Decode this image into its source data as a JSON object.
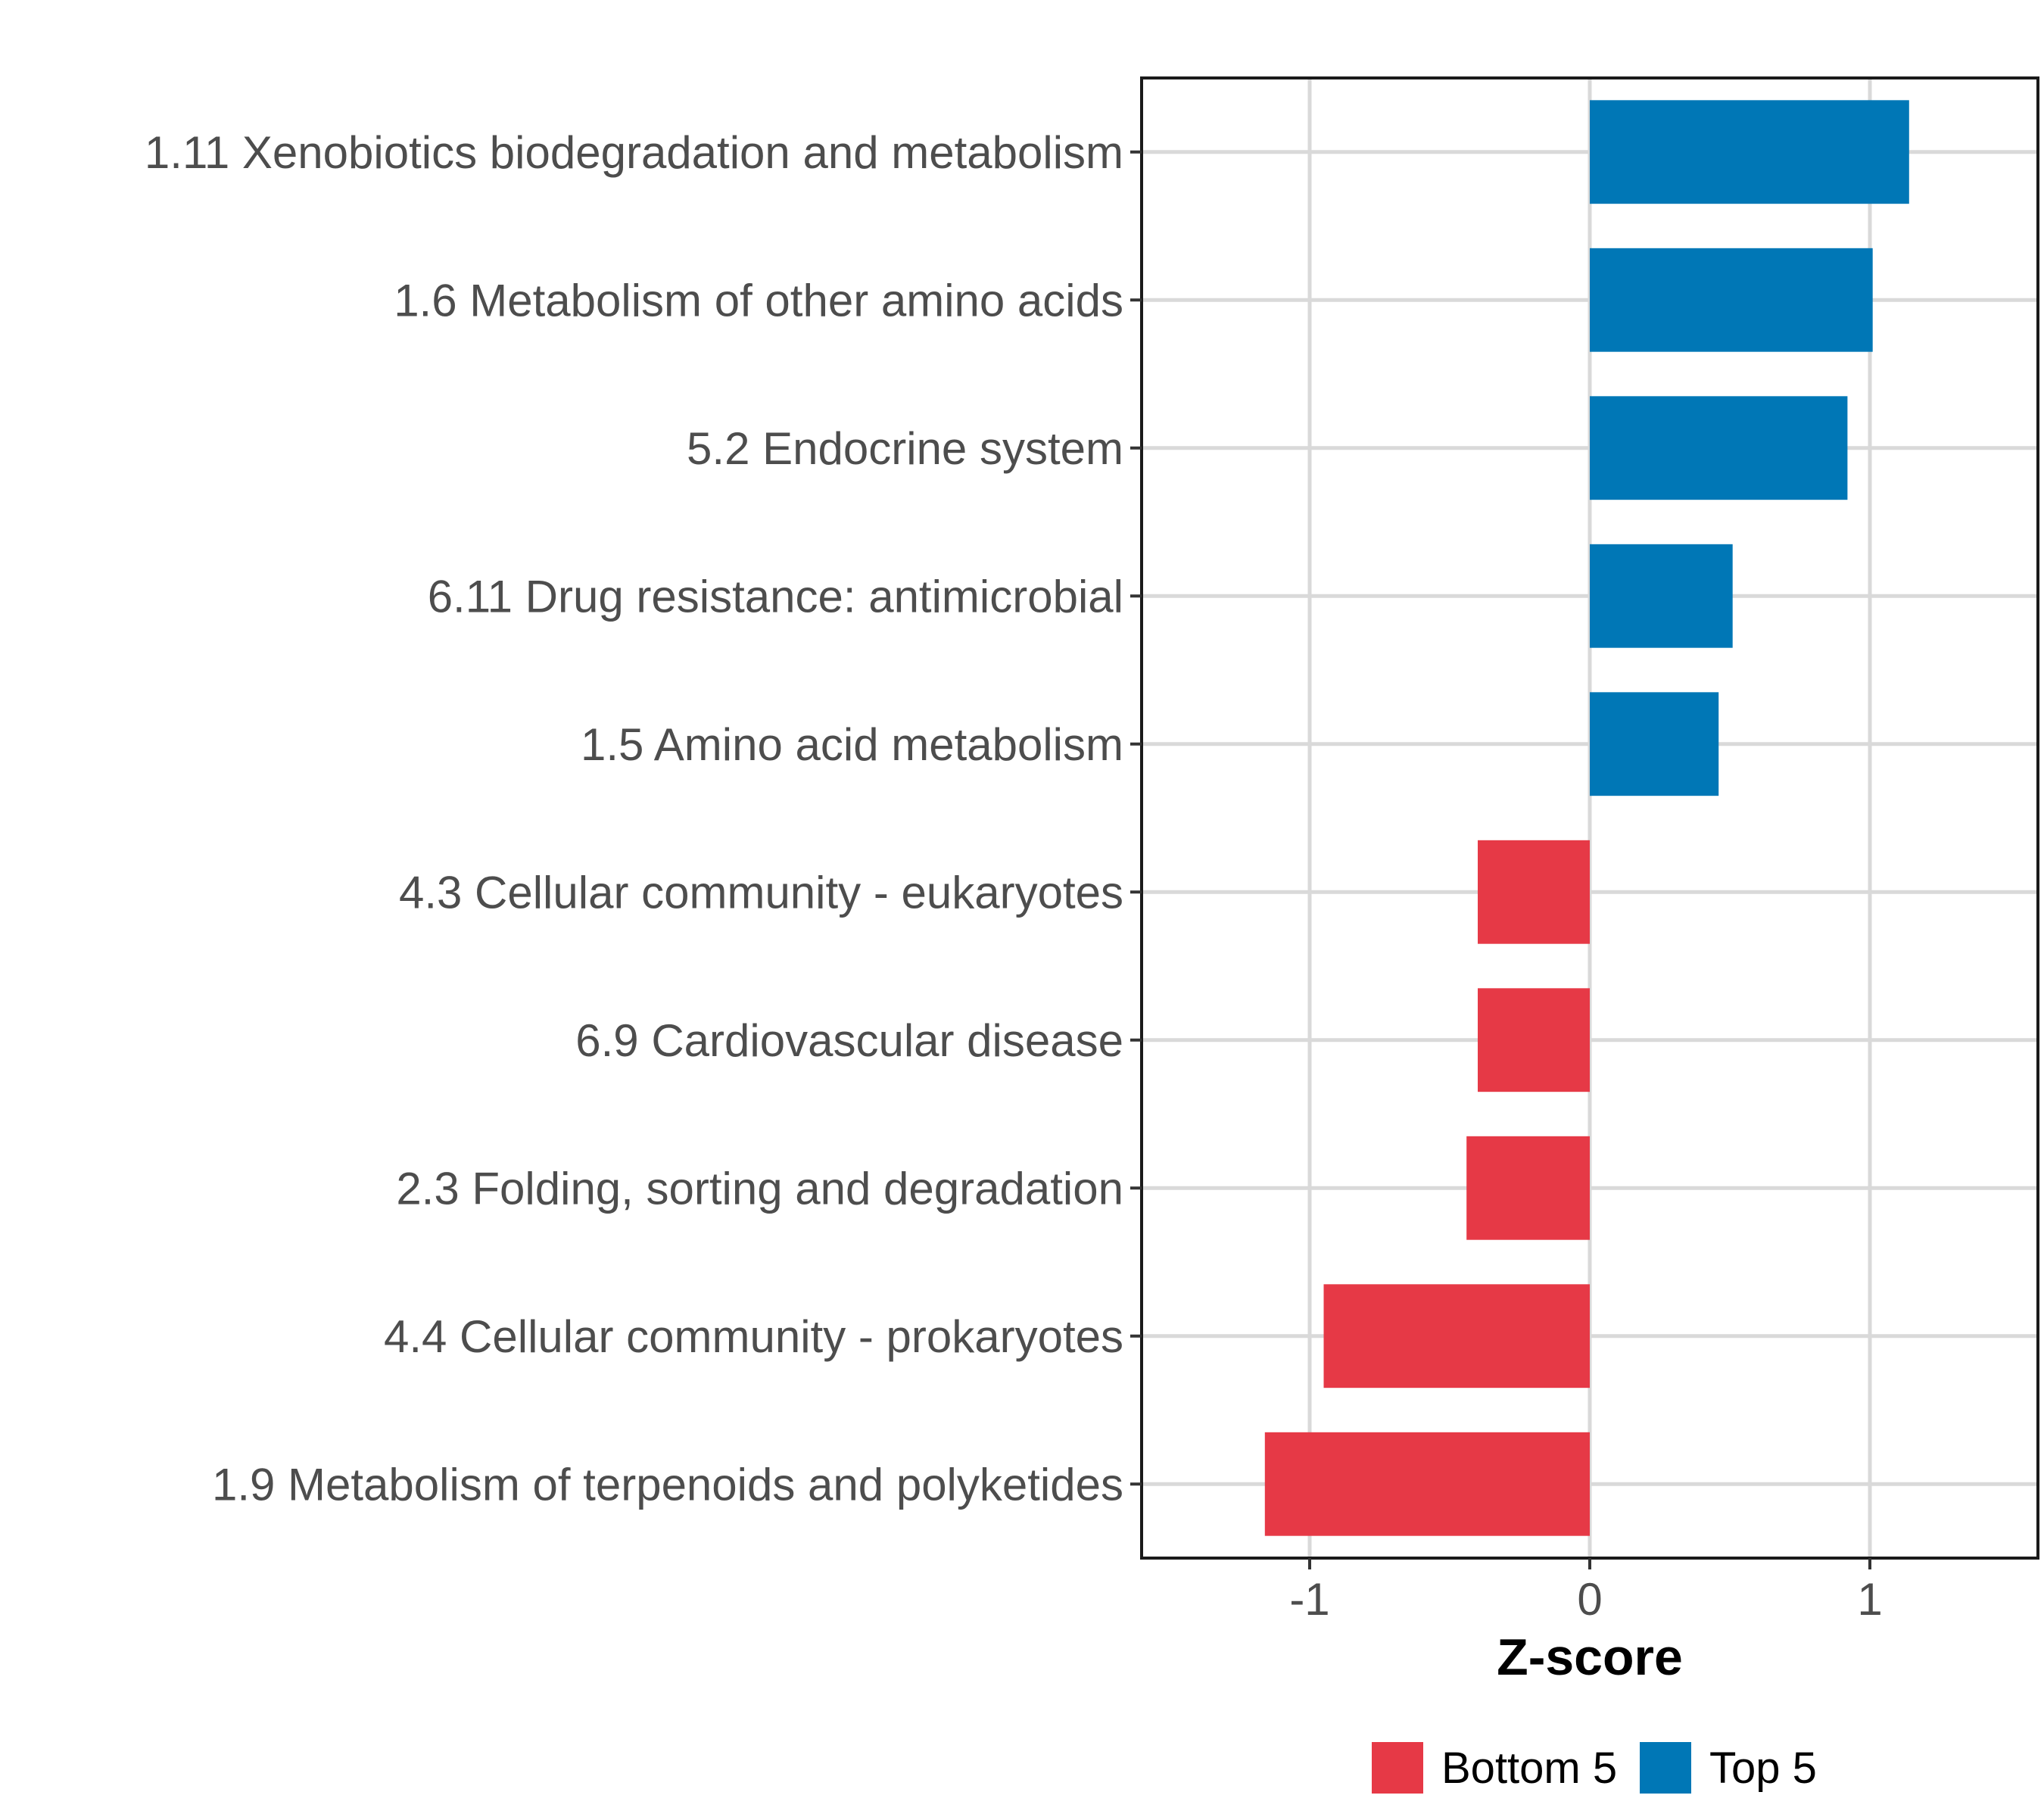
{
  "chart_data": {
    "type": "bar",
    "orientation": "horizontal",
    "title": "",
    "xlabel": "Z-score",
    "ylabel": "",
    "xlim": [
      -1.6,
      1.6
    ],
    "xticks": [
      -1,
      0,
      1
    ],
    "xtick_labels": [
      "-1",
      "0",
      "1"
    ],
    "grid": true,
    "legend_position": "bottom",
    "colors": {
      "Bottom 5": "#e63946",
      "Top 5": "#0077b6"
    },
    "legend": [
      {
        "label": "Bottom 5",
        "color": "#e63946"
      },
      {
        "label": "Top 5",
        "color": "#0077b6"
      }
    ],
    "categories": [
      "1.11 Xenobiotics biodegradation and metabolism",
      "1.6 Metabolism of other amino acids",
      "5.2 Endocrine system",
      "6.11 Drug resistance: antimicrobial",
      "1.5 Amino acid metabolism",
      "4.3 Cellular community - eukaryotes",
      "6.9 Cardiovascular disease",
      "2.3 Folding, sorting and degradation",
      "4.4 Cellular community - prokaryotes",
      "1.9 Metabolism of terpenoids and polyketides"
    ],
    "values": [
      1.14,
      1.01,
      0.92,
      0.51,
      0.46,
      -0.4,
      -0.4,
      -0.44,
      -0.95,
      -1.16
    ],
    "groups": [
      "Top 5",
      "Top 5",
      "Top 5",
      "Top 5",
      "Top 5",
      "Bottom 5",
      "Bottom 5",
      "Bottom 5",
      "Bottom 5",
      "Bottom 5"
    ]
  }
}
